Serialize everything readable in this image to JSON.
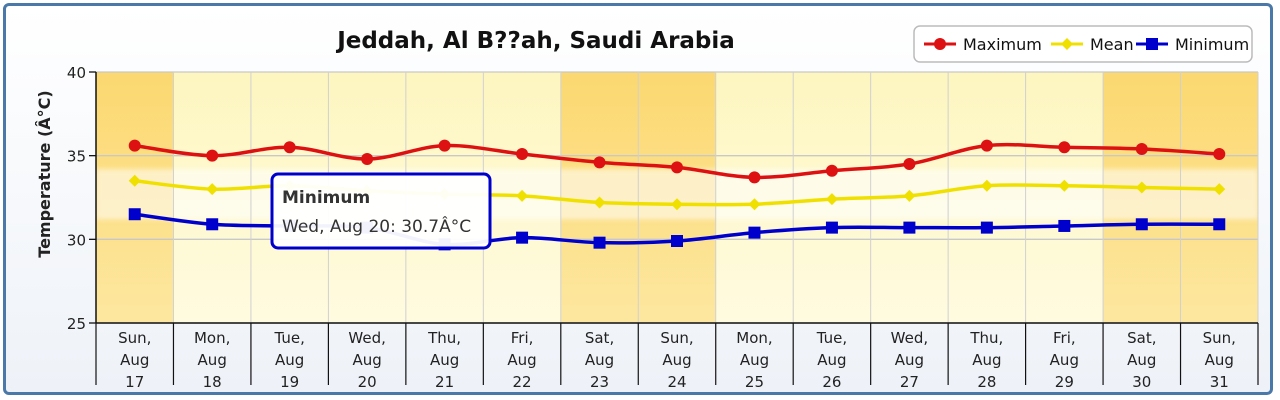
{
  "chart_data": {
    "type": "line",
    "title": "Jeddah, Al B??ah, Saudi Arabia",
    "ylabel": "Temperature (Â°C)",
    "xlabel": "",
    "ylim": [
      25,
      40
    ],
    "yticks": [
      "25",
      "30",
      "35",
      "40"
    ],
    "grid": true,
    "legend_position": "top-right",
    "categories": [
      [
        "Sun,",
        "Aug",
        "17"
      ],
      [
        "Mon,",
        "Aug",
        "18"
      ],
      [
        "Tue,",
        "Aug",
        "19"
      ],
      [
        "Wed,",
        "Aug",
        "20"
      ],
      [
        "Thu,",
        "Aug",
        "21"
      ],
      [
        "Fri,",
        "Aug",
        "22"
      ],
      [
        "Sat,",
        "Aug",
        "23"
      ],
      [
        "Sun,",
        "Aug",
        "24"
      ],
      [
        "Mon,",
        "Aug",
        "25"
      ],
      [
        "Tue,",
        "Aug",
        "26"
      ],
      [
        "Wed,",
        "Aug",
        "27"
      ],
      [
        "Thu,",
        "Aug",
        "28"
      ],
      [
        "Fri,",
        "Aug",
        "29"
      ],
      [
        "Sat,",
        "Aug",
        "30"
      ],
      [
        "Sun,",
        "Aug",
        "31"
      ]
    ],
    "weekend": [
      true,
      false,
      false,
      false,
      false,
      false,
      true,
      true,
      false,
      false,
      false,
      false,
      false,
      true,
      true
    ],
    "series": [
      {
        "name": "Maximum",
        "color": "#dd1111",
        "marker": "circle",
        "values": [
          35.6,
          35.0,
          35.5,
          34.8,
          35.6,
          35.1,
          34.6,
          34.3,
          33.7,
          34.1,
          34.5,
          35.6,
          35.5,
          35.4,
          35.1
        ]
      },
      {
        "name": "Mean",
        "color": "#f0e000",
        "marker": "diamond",
        "values": [
          33.5,
          33.0,
          33.2,
          32.9,
          32.7,
          32.6,
          32.2,
          32.1,
          32.1,
          32.4,
          32.6,
          33.2,
          33.2,
          33.1,
          33.0
        ]
      },
      {
        "name": "Minimum",
        "color": "#0000cc",
        "marker": "square",
        "values": [
          31.5,
          30.9,
          30.8,
          30.7,
          29.7,
          30.1,
          29.8,
          29.9,
          30.4,
          30.7,
          30.7,
          30.7,
          30.8,
          30.9,
          30.9
        ]
      }
    ],
    "tooltip": {
      "title": "Minimum",
      "text": "Wed, Aug 20: 30.7Â°C",
      "color": "#0000cc"
    }
  }
}
